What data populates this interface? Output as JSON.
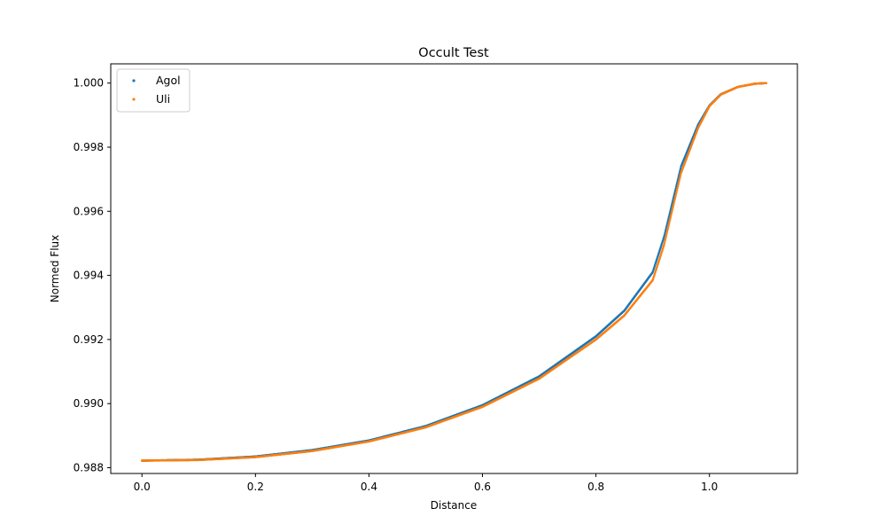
{
  "chart_data": {
    "type": "scatter",
    "title": "Occult Test",
    "xlabel": "Distance",
    "ylabel": "Normed Flux",
    "xlim": [
      -0.055,
      1.155
    ],
    "ylim": [
      0.98782,
      1.0006
    ],
    "xticks": [
      0.0,
      0.2,
      0.4,
      0.6,
      0.8,
      1.0
    ],
    "xtick_labels": [
      "0.0",
      "0.2",
      "0.4",
      "0.6",
      "0.8",
      "1.0"
    ],
    "yticks": [
      0.988,
      0.99,
      0.992,
      0.994,
      0.996,
      0.998,
      1.0
    ],
    "ytick_labels": [
      "0.988",
      "0.990",
      "0.992",
      "0.994",
      "0.996",
      "0.998",
      "1.000"
    ],
    "grid": false,
    "legend_position": "top-left",
    "series": [
      {
        "name": "Agol",
        "color": "#1f77b4",
        "x": [
          0.0,
          0.1,
          0.2,
          0.3,
          0.4,
          0.5,
          0.6,
          0.7,
          0.8,
          0.85,
          0.9,
          0.92,
          0.95,
          0.98,
          1.0,
          1.02,
          1.05,
          1.08,
          1.1
        ],
        "y": [
          0.98822,
          0.98825,
          0.98835,
          0.98855,
          0.98885,
          0.9893,
          0.98995,
          0.99085,
          0.9921,
          0.9929,
          0.9941,
          0.9952,
          0.9974,
          0.9987,
          0.9993,
          0.99965,
          0.99988,
          0.99998,
          1.0
        ]
      },
      {
        "name": "Uli",
        "color": "#ff7f0e",
        "x": [
          0.0,
          0.1,
          0.2,
          0.3,
          0.4,
          0.5,
          0.6,
          0.7,
          0.8,
          0.85,
          0.9,
          0.92,
          0.95,
          0.98,
          1.0,
          1.02,
          1.05,
          1.08,
          1.1
        ],
        "y": [
          0.98822,
          0.98824,
          0.98833,
          0.98852,
          0.98882,
          0.98926,
          0.9899,
          0.99078,
          0.992,
          0.99275,
          0.99385,
          0.99495,
          0.9972,
          0.9986,
          0.99928,
          0.99964,
          0.99988,
          0.99998,
          1.0
        ]
      }
    ]
  }
}
